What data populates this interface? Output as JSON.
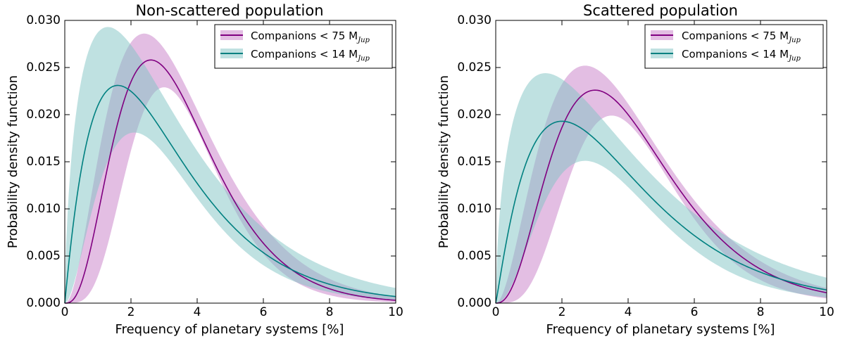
{
  "chart_data": [
    {
      "type": "line",
      "title": "Non-scattered population",
      "xlabel": "Frequency of planetary systems [%]",
      "ylabel": "Probability density function",
      "xlim": [
        0,
        10
      ],
      "ylim": [
        0,
        0.03
      ],
      "xticks": [
        "0",
        "2",
        "4",
        "6",
        "8",
        "10"
      ],
      "yticks": [
        "0.000",
        "0.005",
        "0.010",
        "0.015",
        "0.020",
        "0.025",
        "0.030"
      ],
      "legend_position": "top-right",
      "grid": false,
      "series": [
        {
          "name": "Companions < 75 M",
          "name_sub": "Jup",
          "color": "#800080",
          "band_color": "#c77dc7",
          "peak_x": 2.6,
          "peak_y": 0.0258,
          "tail_x": 10,
          "tail_y": 0.0003,
          "band_upper": {
            "peak_x": 2.4,
            "peak_y": 0.0286,
            "tail_y": 0.0007
          },
          "band_lower": {
            "peak_x": 3.0,
            "peak_y": 0.0229,
            "tail_y": 0.0001
          }
        },
        {
          "name": "Companions < 14 M",
          "name_sub": "Jup",
          "color": "#008080",
          "band_color": "#7fc4c4",
          "peak_x": 1.6,
          "peak_y": 0.0231,
          "tail_x": 10,
          "tail_y": 0.0007,
          "band_upper": {
            "peak_x": 1.3,
            "peak_y": 0.0293,
            "tail_y": 0.0016
          },
          "band_lower": {
            "peak_x": 2.1,
            "peak_y": 0.0181,
            "tail_y": 0.0003
          }
        }
      ]
    },
    {
      "type": "line",
      "title": "Scattered population",
      "xlabel": "Frequency of planetary systems [%]",
      "ylabel": "Probability density function",
      "xlim": [
        0,
        10
      ],
      "ylim": [
        0,
        0.03
      ],
      "xticks": [
        "0",
        "2",
        "4",
        "6",
        "8",
        "10"
      ],
      "yticks": [
        "0.000",
        "0.005",
        "0.010",
        "0.015",
        "0.020",
        "0.025",
        "0.030"
      ],
      "legend_position": "top-right",
      "grid": false,
      "series": [
        {
          "name": "Companions < 75 M",
          "name_sub": "Jup",
          "color": "#800080",
          "band_color": "#c77dc7",
          "peak_x": 3.0,
          "peak_y": 0.0226,
          "tail_x": 10,
          "tail_y": 0.0011,
          "band_upper": {
            "peak_x": 2.7,
            "peak_y": 0.0252,
            "tail_y": 0.0016
          },
          "band_lower": {
            "peak_x": 3.5,
            "peak_y": 0.0199,
            "tail_y": 0.0005
          }
        },
        {
          "name": "Companions < 14 M",
          "name_sub": "Jup",
          "color": "#008080",
          "band_color": "#7fc4c4",
          "peak_x": 2.0,
          "peak_y": 0.0193,
          "tail_x": 10,
          "tail_y": 0.0014,
          "band_upper": {
            "peak_x": 1.5,
            "peak_y": 0.0244,
            "tail_y": 0.0027
          },
          "band_lower": {
            "peak_x": 2.7,
            "peak_y": 0.0151,
            "tail_y": 0.0006
          }
        }
      ]
    }
  ]
}
